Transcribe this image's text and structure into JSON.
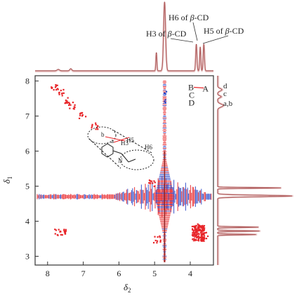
{
  "chart_data": {
    "type": "heatmap",
    "xlabel_main": "δ",
    "xlabel_sub": "2",
    "ylabel_main": "δ",
    "ylabel_sub": "1",
    "xlim": [
      8.35,
      3.35
    ],
    "ylim": [
      2.75,
      8.15
    ],
    "x_ticks": [
      8,
      7,
      6,
      5,
      4
    ],
    "y_ticks": [
      3,
      4,
      5,
      6,
      7,
      8
    ],
    "x_tick_labels": [
      "8",
      "7",
      "6",
      "5",
      "4"
    ],
    "y_tick_labels": [
      "3",
      "4",
      "5",
      "6",
      "7",
      "8"
    ],
    "colors": {
      "positive": "#e8262a",
      "negative": "#2a46c8",
      "trace": "#8b2323",
      "projection_fill": "#d9a0a0"
    },
    "top_projection_labels": [
      {
        "text_pre": "H3 of ",
        "text_beta": "β",
        "text_post": "-CD",
        "ppm": 3.82
      },
      {
        "text_pre": "H6 of ",
        "text_beta": "β",
        "text_post": "-CD",
        "ppm": 3.72
      },
      {
        "text_pre": "H5 of ",
        "text_beta": "β",
        "text_post": "-CD",
        "ppm": 3.62
      }
    ],
    "right_projection_labels": [
      "d",
      "c",
      "a,b"
    ],
    "peak_labels": [
      {
        "text": "B",
        "x": 3.98,
        "y": 7.82
      },
      {
        "text": "A",
        "x": 3.58,
        "y": 7.78
      },
      {
        "text": "C",
        "x": 3.96,
        "y": 7.6
      },
      {
        "text": "D",
        "x": 3.97,
        "y": 7.38
      }
    ],
    "inset_labels": [
      "b",
      "a",
      "H3",
      "H5",
      "N",
      "H6"
    ],
    "cross_peaks": [
      {
        "x": 7.82,
        "y": 7.82,
        "sign": "+"
      },
      {
        "x": 7.65,
        "y": 7.7,
        "sign": "+"
      },
      {
        "x": 7.45,
        "y": 7.45,
        "sign": "+"
      },
      {
        "x": 7.35,
        "y": 7.32,
        "sign": "+"
      },
      {
        "x": 7.05,
        "y": 7.05,
        "sign": "+"
      },
      {
        "x": 6.7,
        "y": 6.72,
        "sign": "+"
      },
      {
        "x": 5.1,
        "y": 5.1,
        "sign": "+"
      },
      {
        "x": 4.72,
        "y": 7.68,
        "sign": "-"
      },
      {
        "x": 4.72,
        "y": 7.45,
        "sign": "-"
      },
      {
        "x": 7.72,
        "y": 3.7,
        "sign": "+"
      },
      {
        "x": 7.6,
        "y": 3.72,
        "sign": "+"
      },
      {
        "x": 4.95,
        "y": 3.5,
        "sign": "+"
      },
      {
        "x": 3.85,
        "y": 3.85,
        "sign": "+"
      },
      {
        "x": 3.72,
        "y": 3.7,
        "sign": "+"
      },
      {
        "x": 3.62,
        "y": 3.6,
        "sign": "+"
      }
    ],
    "t1_noise_ppm": 4.7,
    "water_ppm": 4.72
  }
}
